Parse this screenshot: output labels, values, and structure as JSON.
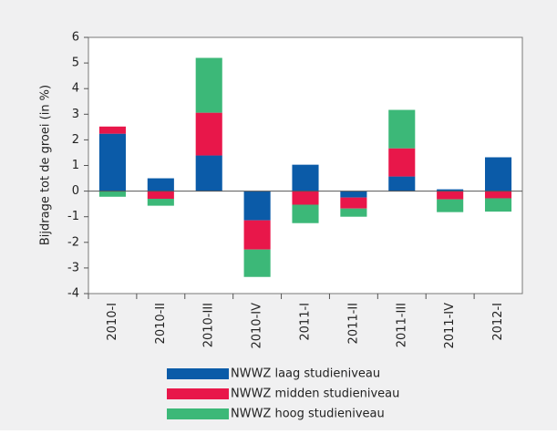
{
  "chart_data": {
    "type": "stacked_bar",
    "y_label": "Bijdrage tot de groei (in %)",
    "categories": [
      "2010-I",
      "2010-II",
      "2010-III",
      "2010-IV",
      "2011-I",
      "2011-II",
      "2011-III",
      "2011-IV",
      "2012-I"
    ],
    "series": [
      {
        "name": "NWWZ laag studieniveau",
        "color": "#0b5ba8",
        "values": [
          2.24,
          0.5,
          1.39,
          -1.14,
          1.03,
          -0.25,
          0.57,
          0.07,
          1.32
        ]
      },
      {
        "name": "NWWZ midden studieniveau",
        "color": "#e8174a",
        "values": [
          0.28,
          -0.3,
          1.67,
          -1.14,
          -0.53,
          -0.43,
          1.1,
          -0.32,
          -0.28
        ]
      },
      {
        "name": "NWWZ hoog studieniveau",
        "color": "#3cb878",
        "values": [
          -0.22,
          -0.27,
          2.14,
          -1.07,
          -0.72,
          -0.32,
          1.5,
          -0.5,
          -0.52
        ]
      }
    ],
    "ylim": [
      -4,
      6
    ],
    "yticks": [
      -4,
      -3,
      -2,
      -1,
      0,
      1,
      2,
      3,
      4,
      5,
      6
    ]
  }
}
